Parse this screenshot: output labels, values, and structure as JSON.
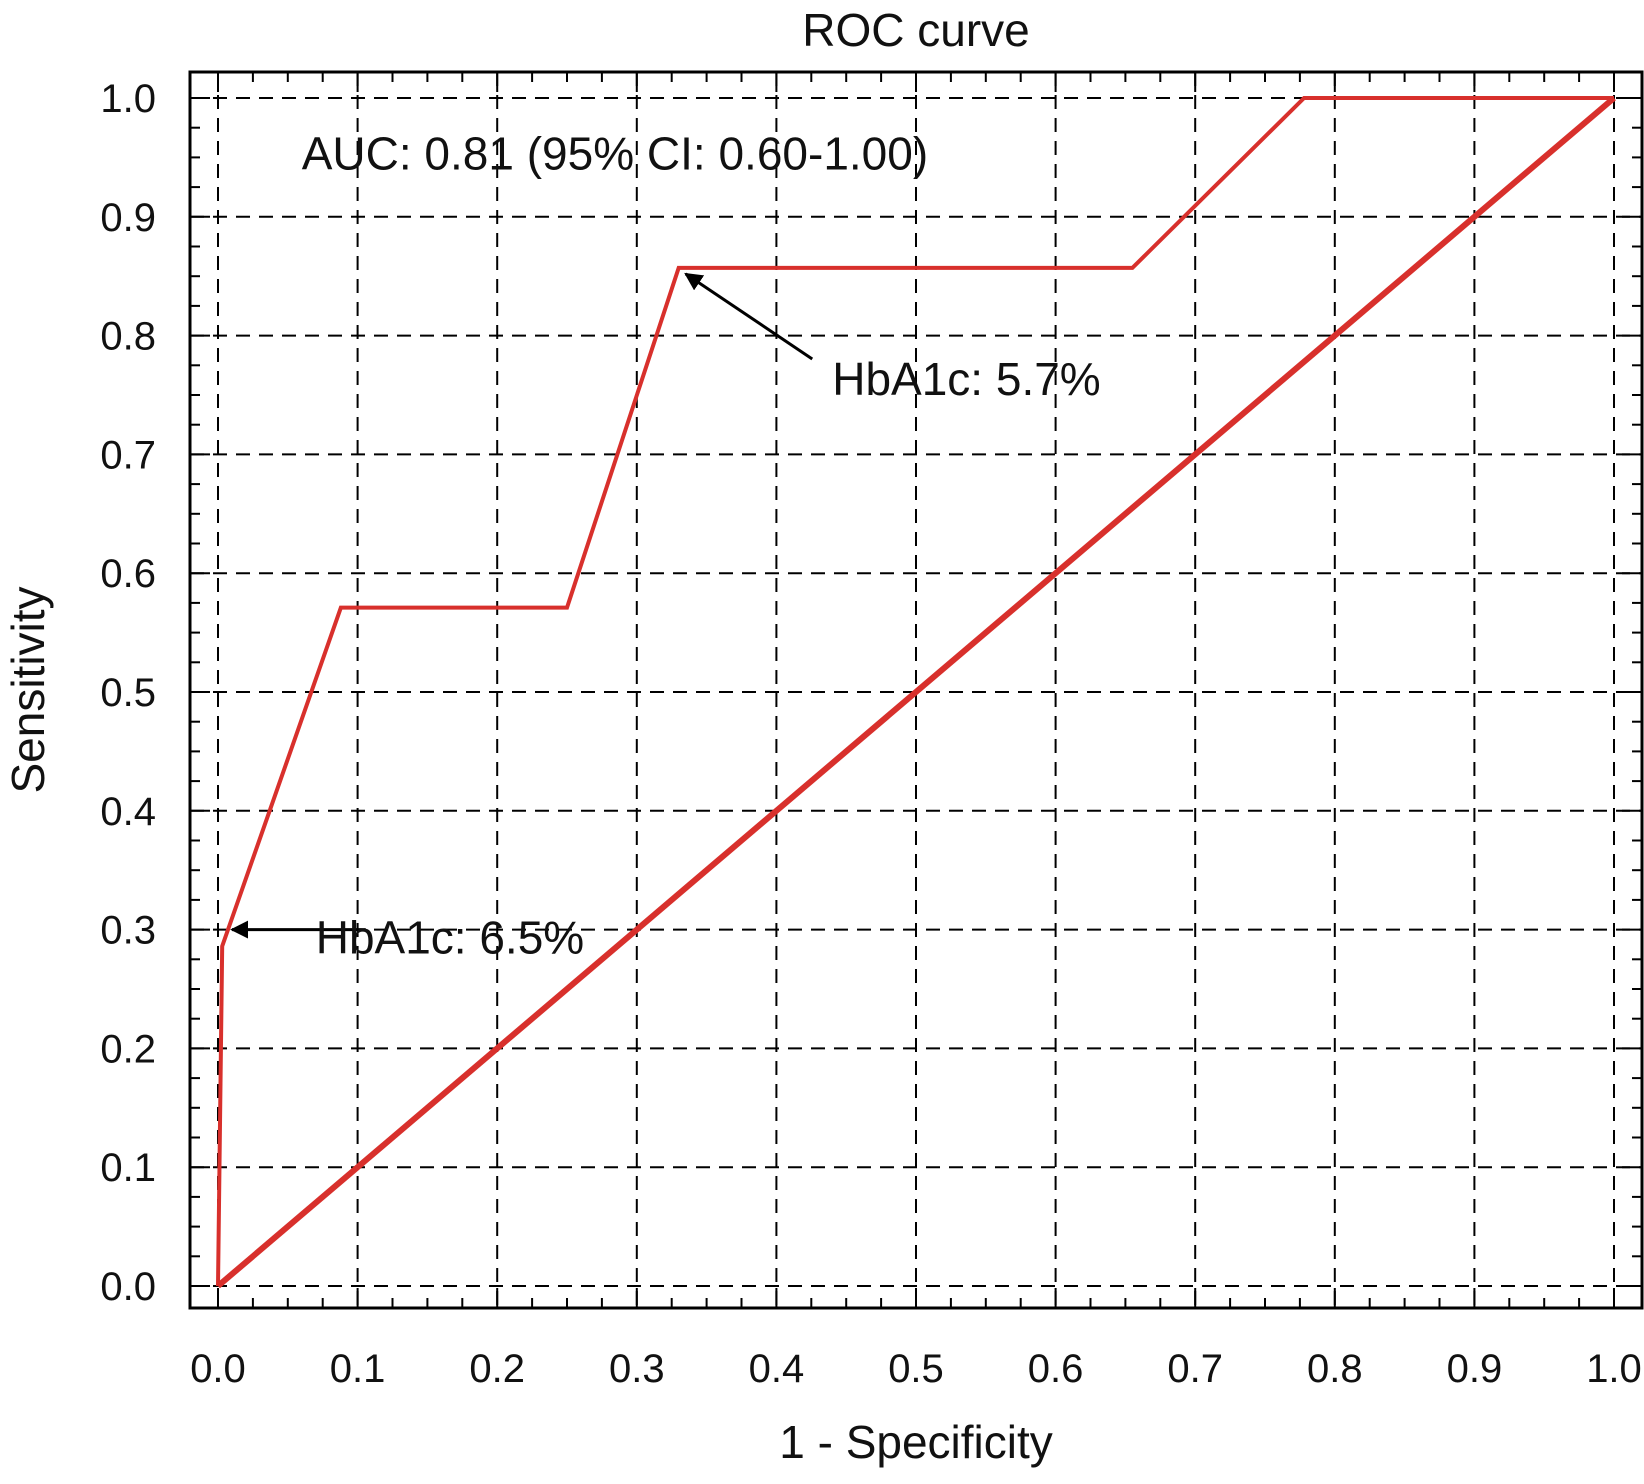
{
  "chart_data": {
    "type": "line",
    "title": "ROC curve",
    "xlabel": "1 - Specificity",
    "ylabel": "Sensitivity",
    "xlim": [
      0,
      1
    ],
    "ylim": [
      0,
      1
    ],
    "xticks": [
      "0.0",
      "0.1",
      "0.2",
      "0.3",
      "0.4",
      "0.5",
      "0.6",
      "0.7",
      "0.8",
      "0.9",
      "1.0"
    ],
    "yticks": [
      "0.0",
      "0.1",
      "0.2",
      "0.3",
      "0.4",
      "0.5",
      "0.6",
      "0.7",
      "0.8",
      "0.9",
      "1.0"
    ],
    "grid": true,
    "grid_style": "dashed",
    "legend": "none",
    "series": [
      {
        "x": [
          0.0,
          0.0,
          0.003,
          0.088,
          0.25,
          0.33,
          0.655,
          0.778,
          1.0
        ],
        "y": [
          0.0,
          0.0,
          0.286,
          0.571,
          0.571,
          0.857,
          0.857,
          1.0,
          1.0
        ],
        "color": "#d8302c"
      },
      {
        "x": [
          0.0,
          1.0
        ],
        "y": [
          0.0,
          1.0
        ],
        "color": "#d8302c"
      }
    ],
    "annotations": [
      {
        "text": "AUC: 0.81 (95% CI: 0.60-1.00)",
        "x": 0.06,
        "y": 0.94
      },
      {
        "text": "HbA1c: 5.7%",
        "x": 0.44,
        "y": 0.75,
        "arrow_to": [
          0.335,
          0.852
        ]
      },
      {
        "text": "HbA1c: 6.5%",
        "x": 0.07,
        "y": 0.28,
        "arrow_to": [
          0.01,
          0.3
        ]
      }
    ]
  }
}
